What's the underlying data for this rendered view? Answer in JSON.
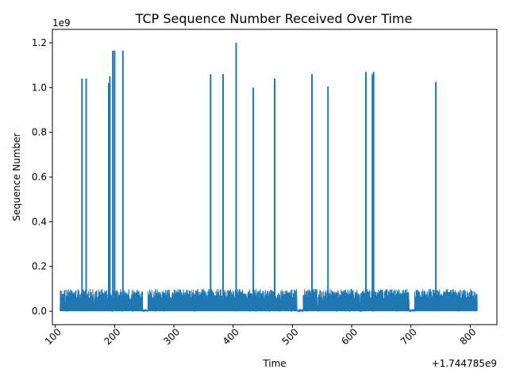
{
  "chart_data": {
    "type": "line",
    "title": "TCP Sequence Number Received Over Time",
    "xlabel": "Time",
    "ylabel": "Sequence Number",
    "x_offset_label": "+1.744785e9",
    "y_scale_label": "1e9",
    "xlim": [
      95,
      845
    ],
    "ylim": [
      -0.06,
      1.26
    ],
    "x_ticks": [
      100,
      200,
      300,
      400,
      500,
      600,
      700,
      800
    ],
    "x_tick_labels": [
      "100",
      "200",
      "300",
      "400",
      "500",
      "600",
      "700",
      "800"
    ],
    "y_ticks": [
      0.0,
      0.2,
      0.4,
      0.6,
      0.8,
      1.0,
      1.2
    ],
    "y_tick_labels": [
      "0.0",
      "0.2",
      "0.4",
      "0.6",
      "0.8",
      "1.0",
      "1.2"
    ],
    "grid": false,
    "legend": "none",
    "series": [
      {
        "color": "#1f77b4",
        "x_start": 108,
        "x_end": 812,
        "baseline": 0.0,
        "noise_max": 0.1,
        "spikes": [
          {
            "x": 145,
            "y": 1.04
          },
          {
            "x": 152,
            "y": 1.04
          },
          {
            "x": 190,
            "y": 1.02
          },
          {
            "x": 192,
            "y": 1.05
          },
          {
            "x": 197,
            "y": 1.165
          },
          {
            "x": 200,
            "y": 1.165
          },
          {
            "x": 214,
            "y": 1.165
          },
          {
            "x": 362,
            "y": 1.06
          },
          {
            "x": 383,
            "y": 1.06
          },
          {
            "x": 405,
            "y": 1.2
          },
          {
            "x": 434,
            "y": 1.0
          },
          {
            "x": 470,
            "y": 1.04
          },
          {
            "x": 533,
            "y": 1.06
          },
          {
            "x": 560,
            "y": 1.005
          },
          {
            "x": 624,
            "y": 1.07
          },
          {
            "x": 635,
            "y": 1.06
          },
          {
            "x": 637,
            "y": 1.07
          },
          {
            "x": 742,
            "y": 1.025
          }
        ],
        "gaps": [
          [
            247,
            256
          ],
          [
            508,
            518
          ],
          [
            697,
            706
          ]
        ]
      }
    ]
  }
}
